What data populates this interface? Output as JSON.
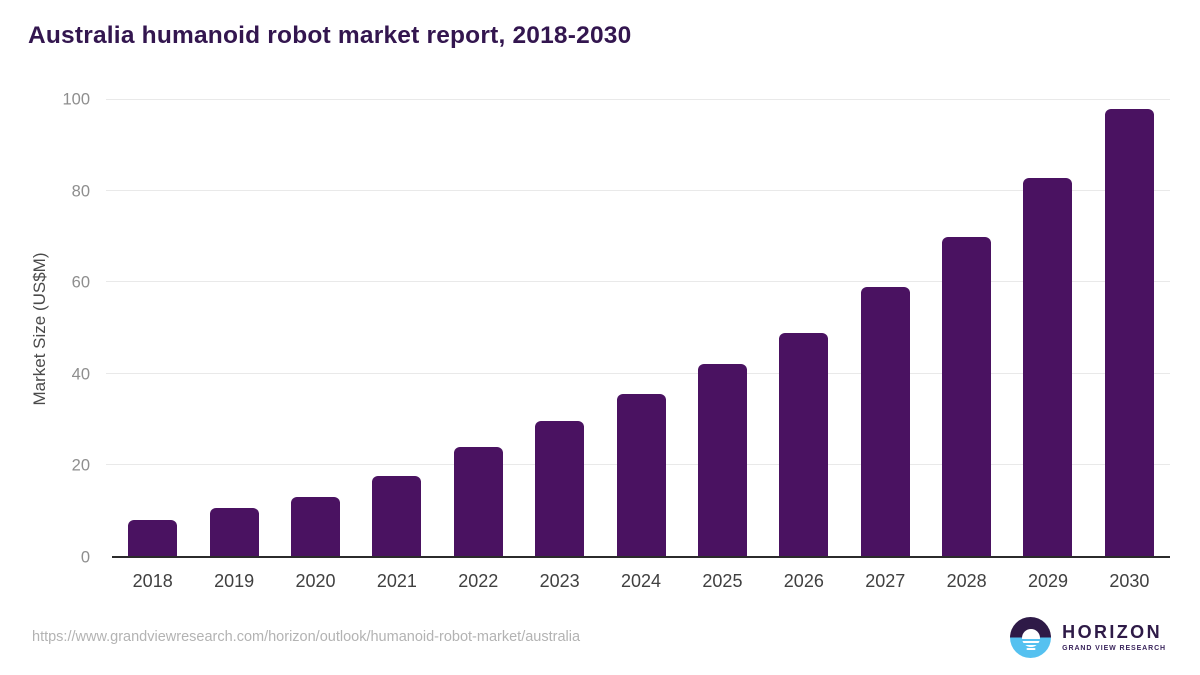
{
  "header": {
    "title": "Australia humanoid robot market report, 2018-2030"
  },
  "chart_data": {
    "type": "bar",
    "title": "Australia humanoid robot market report, 2018-2030",
    "categories": [
      "2018",
      "2019",
      "2020",
      "2021",
      "2022",
      "2023",
      "2024",
      "2025",
      "2026",
      "2027",
      "2028",
      "2029",
      "2030"
    ],
    "values": [
      8,
      10.5,
      13,
      17.5,
      24,
      29.5,
      35.5,
      42,
      49,
      59,
      70,
      83,
      98
    ],
    "xlabel": "",
    "ylabel": "Market Size (US$M)",
    "ylim": [
      0,
      100
    ],
    "yticks": [
      0,
      20,
      40,
      60,
      80,
      100
    ],
    "grid": true,
    "legend": false,
    "bar_color": "#4a1261"
  },
  "footer": {
    "source_url": "https://www.grandviewresearch.com/horizon/outlook/humanoid-robot-market/australia",
    "logo": {
      "name": "HORIZON",
      "subtitle": "GRAND VIEW RESEARCH",
      "mark_top_color": "#2e1a47",
      "mark_bottom_color": "#55c1f0"
    }
  },
  "colors": {
    "title_text": "#33164f",
    "axis_line": "#2b2b2b",
    "gridline": "#e9e9e9",
    "y_tick_text": "#8e8e8e",
    "x_tick_text": "#404040",
    "url_text": "#b3b3b3"
  }
}
